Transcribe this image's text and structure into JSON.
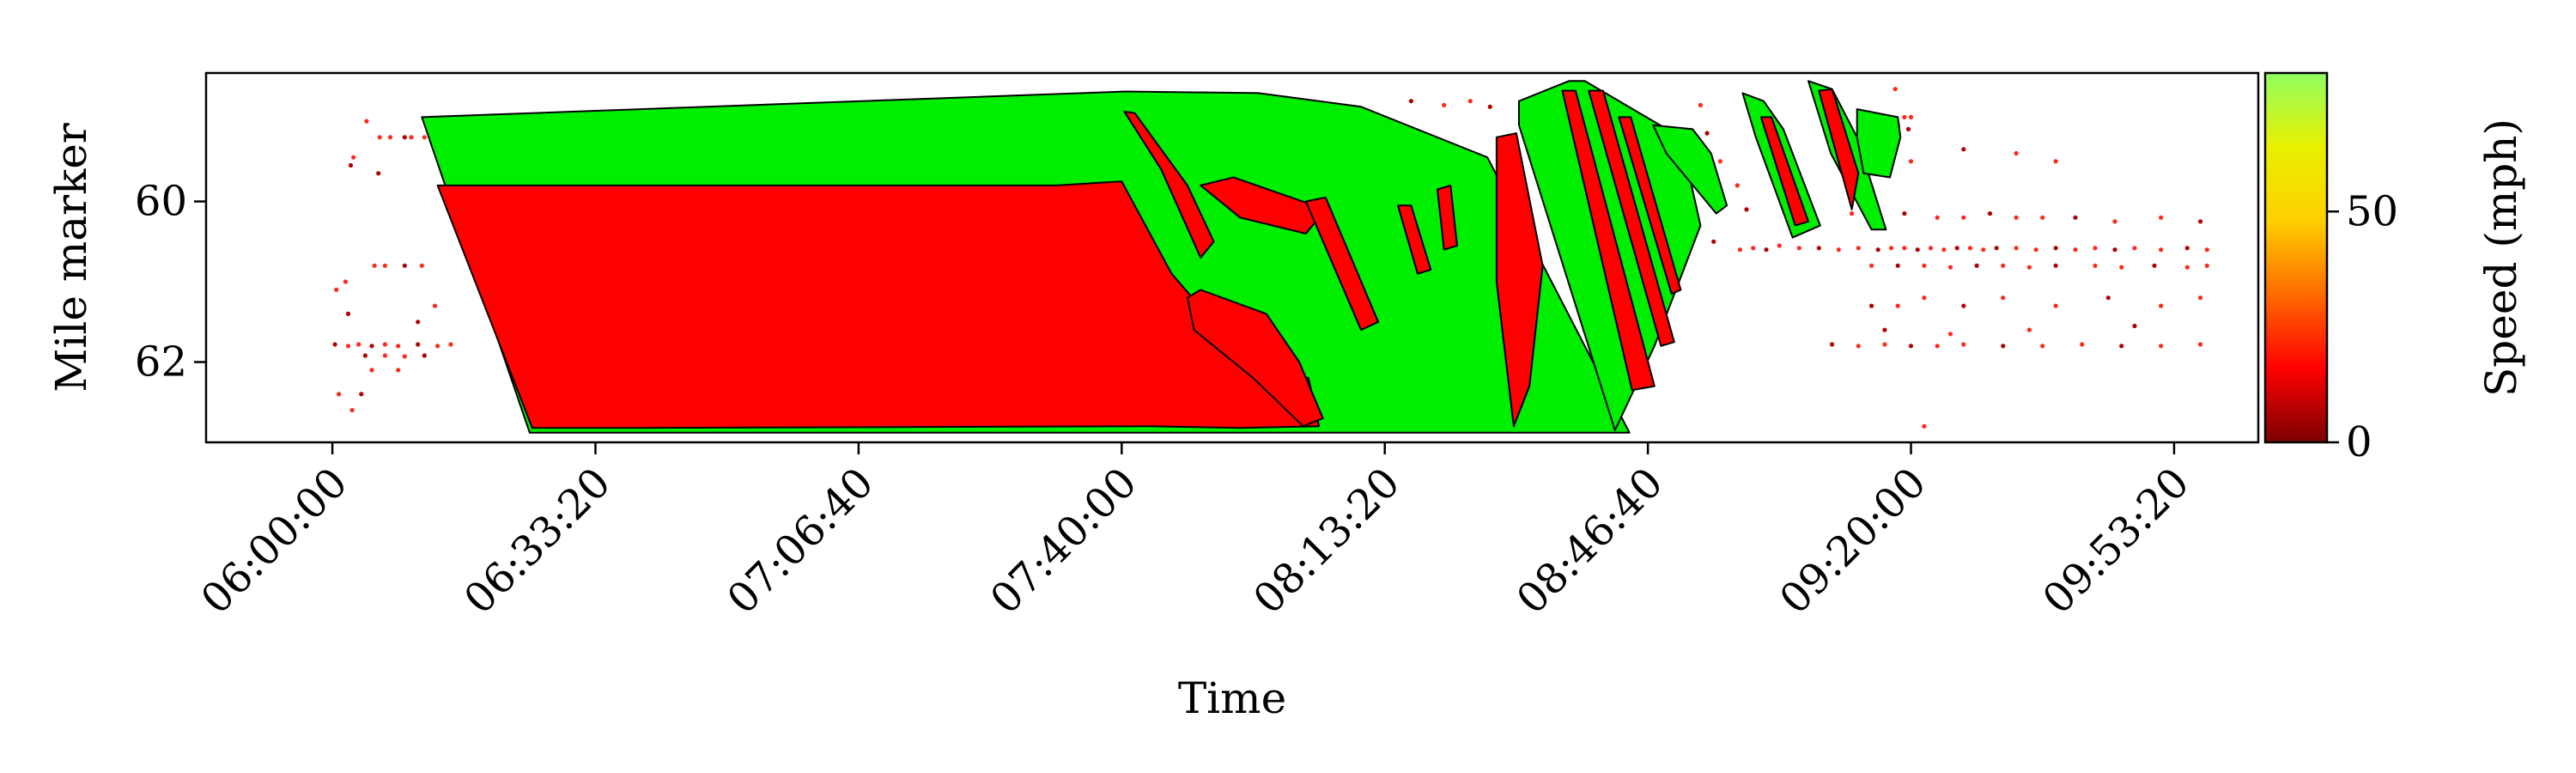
{
  "chart_data": {
    "type": "scatter",
    "xlabel": "Time",
    "ylabel": "Mile marker",
    "colorbar_label": "Speed (mph)",
    "x_range_seconds": [
      20640,
      36240
    ],
    "y_range": [
      63.0,
      58.4
    ],
    "y_inverted": true,
    "x_ticks": [
      {
        "value": 21600,
        "label": "06:00:00"
      },
      {
        "value": 23600,
        "label": "06:33:20"
      },
      {
        "value": 25600,
        "label": "07:06:40"
      },
      {
        "value": 27600,
        "label": "07:40:00"
      },
      {
        "value": 29600,
        "label": "08:13:20"
      },
      {
        "value": 31600,
        "label": "08:46:40"
      },
      {
        "value": 33600,
        "label": "09:20:00"
      },
      {
        "value": 35600,
        "label": "09:53:20"
      }
    ],
    "y_ticks": [
      {
        "value": 60,
        "label": "60"
      },
      {
        "value": 62,
        "label": "62"
      }
    ],
    "colorbar": {
      "range": [
        0,
        80
      ],
      "ticks": [
        {
          "value": 0,
          "label": "0"
        },
        {
          "value": 50,
          "label": "50"
        }
      ],
      "colors": [
        "#7a0000",
        "#ff0000",
        "#ff6a00",
        "#ffd000",
        "#e8f000",
        "#90ff60"
      ]
    },
    "free_flow_regions": [
      {
        "x": [
          22280,
          27635,
          28640,
          29420,
          30380,
          31460,
          29910,
          27620,
          23100
        ],
        "y": [
          58.95,
          58.63,
          58.65,
          58.82,
          59.45,
          62.88,
          62.88,
          62.88,
          62.88
        ]
      },
      {
        "x": [
          30620,
          31000,
          31120,
          31850,
          32000,
          31650,
          31350,
          30620
        ],
        "y": [
          58.75,
          58.5,
          58.5,
          59.2,
          60.3,
          61.8,
          62.85,
          59.05
        ]
      },
      {
        "x": [
          31640,
          31940,
          32080,
          32200,
          32120,
          31740
        ],
        "y": [
          59.05,
          59.1,
          59.4,
          60.05,
          60.15,
          59.4
        ]
      },
      {
        "x": [
          32320,
          32480,
          32630,
          32910,
          32700,
          32420
        ],
        "y": [
          58.65,
          58.75,
          59.1,
          60.3,
          60.45,
          59.2
        ]
      },
      {
        "x": [
          32820,
          33000,
          33190,
          33410,
          33300,
          32990
        ],
        "y": [
          58.5,
          58.6,
          59.2,
          60.35,
          60.35,
          59.4
        ]
      },
      {
        "x": [
          33190,
          33500,
          33520,
          33440,
          33240,
          33190
        ],
        "y": [
          58.85,
          58.95,
          59.2,
          59.7,
          59.65,
          59.2
        ]
      }
    ],
    "congested_regions": [
      {
        "x": [
          22400,
          27100,
          27600,
          27980,
          28350,
          28600,
          29020,
          29100,
          28500,
          27800,
          24000,
          23120
        ],
        "y": [
          59.8,
          59.8,
          59.75,
          60.9,
          61.6,
          62.0,
          62.2,
          62.8,
          62.82,
          62.8,
          62.82,
          62.82
        ]
      },
      {
        "x": [
          27620,
          27700,
          28100,
          28300,
          28200,
          27900
        ],
        "y": [
          58.88,
          58.9,
          59.8,
          60.5,
          60.7,
          59.6
        ]
      },
      {
        "x": [
          28100,
          28200,
          28700,
          28950,
          29130,
          28980,
          28600,
          28150
        ],
        "y": [
          61.2,
          61.1,
          61.4,
          62.0,
          62.7,
          62.8,
          62.2,
          61.6
        ]
      },
      {
        "x": [
          28200,
          28450,
          29150,
          29000,
          28500
        ],
        "y": [
          59.8,
          59.7,
          60.1,
          60.4,
          60.2
        ]
      },
      {
        "x": [
          29000,
          29150,
          29550,
          29420
        ],
        "y": [
          60.0,
          59.95,
          61.5,
          61.6
        ]
      },
      {
        "x": [
          29700,
          29800,
          29950,
          29850
        ],
        "y": [
          60.05,
          60.05,
          60.85,
          60.9
        ]
      },
      {
        "x": [
          30000,
          30100,
          30150,
          30050
        ],
        "y": [
          59.85,
          59.8,
          60.55,
          60.6
        ]
      },
      {
        "x": [
          30450,
          30600,
          30800,
          30700,
          30580,
          30450
        ],
        "y": [
          59.2,
          59.15,
          60.8,
          62.3,
          62.8,
          61.0
        ]
      },
      {
        "x": [
          30950,
          31050,
          31650,
          31480
        ],
        "y": [
          58.62,
          58.62,
          62.3,
          62.35
        ]
      },
      {
        "x": [
          31150,
          31260,
          31800,
          31700
        ],
        "y": [
          58.62,
          58.62,
          61.75,
          61.8
        ]
      },
      {
        "x": [
          31380,
          31470,
          31850,
          31780
        ],
        "y": [
          58.95,
          58.95,
          61.1,
          61.15
        ]
      },
      {
        "x": [
          32460,
          32540,
          32820,
          32720
        ],
        "y": [
          58.95,
          58.95,
          60.25,
          60.3
        ]
      },
      {
        "x": [
          32900,
          33000,
          33200,
          33150
        ],
        "y": [
          58.62,
          58.6,
          59.65,
          60.1
        ]
      }
    ],
    "sparse_points": [
      {
        "x": 21620,
        "y": 61.78
      },
      {
        "x": 21720,
        "y": 61.8
      },
      {
        "x": 21800,
        "y": 61.78
      },
      {
        "x": 21900,
        "y": 61.8
      },
      {
        "x": 22000,
        "y": 61.78
      },
      {
        "x": 22100,
        "y": 61.8
      },
      {
        "x": 22250,
        "y": 61.78
      },
      {
        "x": 22400,
        "y": 61.8
      },
      {
        "x": 22500,
        "y": 61.78
      },
      {
        "x": 21850,
        "y": 61.92
      },
      {
        "x": 22000,
        "y": 61.92
      },
      {
        "x": 22150,
        "y": 61.93
      },
      {
        "x": 22300,
        "y": 61.92
      },
      {
        "x": 21960,
        "y": 59.2
      },
      {
        "x": 22040,
        "y": 59.2
      },
      {
        "x": 22150,
        "y": 59.2
      },
      {
        "x": 22200,
        "y": 59.2
      },
      {
        "x": 22300,
        "y": 59.2
      },
      {
        "x": 21740,
        "y": 59.55
      },
      {
        "x": 21760,
        "y": 59.45
      },
      {
        "x": 21860,
        "y": 59.0
      },
      {
        "x": 21950,
        "y": 59.65
      },
      {
        "x": 21920,
        "y": 60.8
      },
      {
        "x": 22000,
        "y": 60.8
      },
      {
        "x": 22150,
        "y": 60.8
      },
      {
        "x": 22280,
        "y": 60.8
      },
      {
        "x": 21700,
        "y": 61.0
      },
      {
        "x": 21720,
        "y": 61.4
      },
      {
        "x": 21650,
        "y": 62.4
      },
      {
        "x": 21750,
        "y": 62.6
      },
      {
        "x": 21820,
        "y": 62.4
      },
      {
        "x": 21900,
        "y": 62.1
      },
      {
        "x": 22100,
        "y": 62.1
      },
      {
        "x": 22250,
        "y": 61.5
      },
      {
        "x": 22380,
        "y": 61.3
      },
      {
        "x": 21630,
        "y": 61.1
      },
      {
        "x": 29800,
        "y": 58.75
      },
      {
        "x": 30050,
        "y": 58.8
      },
      {
        "x": 30250,
        "y": 58.75
      },
      {
        "x": 30400,
        "y": 58.82
      },
      {
        "x": 31400,
        "y": 62.85
      },
      {
        "x": 32000,
        "y": 58.8
      },
      {
        "x": 32100,
        "y": 60.5
      },
      {
        "x": 32300,
        "y": 60.6
      },
      {
        "x": 32400,
        "y": 60.58
      },
      {
        "x": 32500,
        "y": 60.6
      },
      {
        "x": 32600,
        "y": 60.55
      },
      {
        "x": 32750,
        "y": 60.58
      },
      {
        "x": 32900,
        "y": 60.58
      },
      {
        "x": 33050,
        "y": 60.6
      },
      {
        "x": 33200,
        "y": 60.58
      },
      {
        "x": 33350,
        "y": 60.6
      },
      {
        "x": 33450,
        "y": 60.58
      },
      {
        "x": 33550,
        "y": 60.58
      },
      {
        "x": 33650,
        "y": 60.6
      },
      {
        "x": 33750,
        "y": 60.58
      },
      {
        "x": 33850,
        "y": 60.6
      },
      {
        "x": 33950,
        "y": 60.58
      },
      {
        "x": 34050,
        "y": 60.58
      },
      {
        "x": 34150,
        "y": 60.6
      },
      {
        "x": 34250,
        "y": 60.58
      },
      {
        "x": 34400,
        "y": 60.58
      },
      {
        "x": 34550,
        "y": 60.6
      },
      {
        "x": 34700,
        "y": 60.58
      },
      {
        "x": 34850,
        "y": 60.6
      },
      {
        "x": 35000,
        "y": 60.58
      },
      {
        "x": 35150,
        "y": 60.6
      },
      {
        "x": 35300,
        "y": 60.58
      },
      {
        "x": 35500,
        "y": 60.6
      },
      {
        "x": 35700,
        "y": 60.58
      },
      {
        "x": 35850,
        "y": 60.6
      },
      {
        "x": 33300,
        "y": 60.8
      },
      {
        "x": 33500,
        "y": 60.8
      },
      {
        "x": 33700,
        "y": 60.8
      },
      {
        "x": 33900,
        "y": 60.82
      },
      {
        "x": 34100,
        "y": 60.8
      },
      {
        "x": 34300,
        "y": 60.8
      },
      {
        "x": 34500,
        "y": 60.82
      },
      {
        "x": 34700,
        "y": 60.8
      },
      {
        "x": 35000,
        "y": 60.8
      },
      {
        "x": 35200,
        "y": 60.82
      },
      {
        "x": 35450,
        "y": 60.8
      },
      {
        "x": 35700,
        "y": 60.82
      },
      {
        "x": 35850,
        "y": 60.8
      },
      {
        "x": 33000,
        "y": 61.78
      },
      {
        "x": 33200,
        "y": 61.8
      },
      {
        "x": 33400,
        "y": 61.78
      },
      {
        "x": 33600,
        "y": 61.8
      },
      {
        "x": 33800,
        "y": 61.8
      },
      {
        "x": 34000,
        "y": 61.78
      },
      {
        "x": 34300,
        "y": 61.8
      },
      {
        "x": 34600,
        "y": 61.8
      },
      {
        "x": 34900,
        "y": 61.78
      },
      {
        "x": 35200,
        "y": 61.8
      },
      {
        "x": 35500,
        "y": 61.8
      },
      {
        "x": 35800,
        "y": 61.78
      },
      {
        "x": 33300,
        "y": 61.3
      },
      {
        "x": 33500,
        "y": 61.3
      },
      {
        "x": 33700,
        "y": 61.2
      },
      {
        "x": 34000,
        "y": 61.3
      },
      {
        "x": 34300,
        "y": 61.2
      },
      {
        "x": 34700,
        "y": 61.3
      },
      {
        "x": 35100,
        "y": 61.2
      },
      {
        "x": 35500,
        "y": 61.3
      },
      {
        "x": 35800,
        "y": 61.2
      },
      {
        "x": 33400,
        "y": 61.6
      },
      {
        "x": 33900,
        "y": 61.65
      },
      {
        "x": 34500,
        "y": 61.6
      },
      {
        "x": 35300,
        "y": 61.55
      },
      {
        "x": 33700,
        "y": 62.8
      },
      {
        "x": 33600,
        "y": 59.5
      },
      {
        "x": 34000,
        "y": 59.35
      },
      {
        "x": 34400,
        "y": 59.4
      },
      {
        "x": 34700,
        "y": 59.5
      },
      {
        "x": 34850,
        "y": 60.2
      },
      {
        "x": 35150,
        "y": 60.25
      },
      {
        "x": 35500,
        "y": 60.2
      },
      {
        "x": 35800,
        "y": 60.25
      },
      {
        "x": 33150,
        "y": 60.15
      },
      {
        "x": 33350,
        "y": 60.2
      },
      {
        "x": 33550,
        "y": 60.15
      },
      {
        "x": 33800,
        "y": 60.2
      },
      {
        "x": 34000,
        "y": 60.2
      },
      {
        "x": 34200,
        "y": 60.15
      },
      {
        "x": 34400,
        "y": 60.2
      },
      {
        "x": 34600,
        "y": 60.2
      },
      {
        "x": 32050,
        "y": 59.15
      },
      {
        "x": 32150,
        "y": 59.5
      },
      {
        "x": 32280,
        "y": 59.8
      },
      {
        "x": 32350,
        "y": 60.1
      },
      {
        "x": 32450,
        "y": 58.85
      },
      {
        "x": 33480,
        "y": 58.6
      },
      {
        "x": 33500,
        "y": 59.05
      },
      {
        "x": 33550,
        "y": 58.95
      },
      {
        "x": 33600,
        "y": 58.95
      },
      {
        "x": 33580,
        "y": 59.1
      }
    ]
  }
}
